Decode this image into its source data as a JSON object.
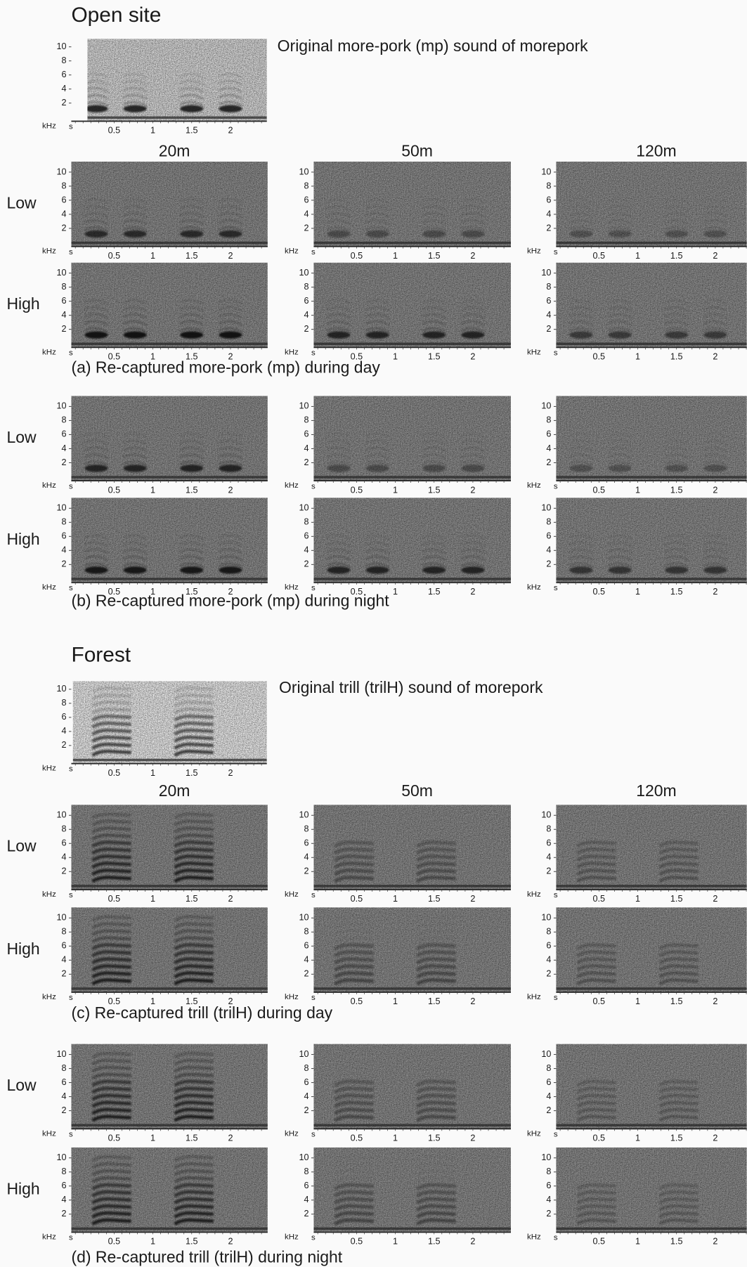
{
  "axis": {
    "y_ticks": [
      10,
      8,
      6,
      4,
      2
    ],
    "y_unit": "kHz",
    "x_unit": "s",
    "x_ticks": [
      0.5,
      1,
      1.5,
      2
    ]
  },
  "sections": [
    {
      "title": "Open site",
      "original_caption": "Original more-pork (mp) sound of morepork",
      "distances": [
        "20m",
        "50m",
        "120m"
      ],
      "groups": [
        {
          "rows": [
            "Low",
            "High"
          ],
          "caption": "(a) Re-captured more-pork (mp) during day"
        },
        {
          "rows": [
            "Low",
            "High"
          ],
          "caption": "(b) Re-captured more-pork (mp) during night"
        }
      ]
    },
    {
      "title": "Forest",
      "original_caption": "Original trill (trilH) sound of morepork",
      "distances": [
        "20m",
        "50m",
        "120m"
      ],
      "groups": [
        {
          "rows": [
            "Low",
            "High"
          ],
          "caption": "(c) Re-captured trill (trilH) during day"
        },
        {
          "rows": [
            "Low",
            "High"
          ],
          "caption": "(d) Re-captured trill (trilH) during night"
        }
      ]
    }
  ]
}
